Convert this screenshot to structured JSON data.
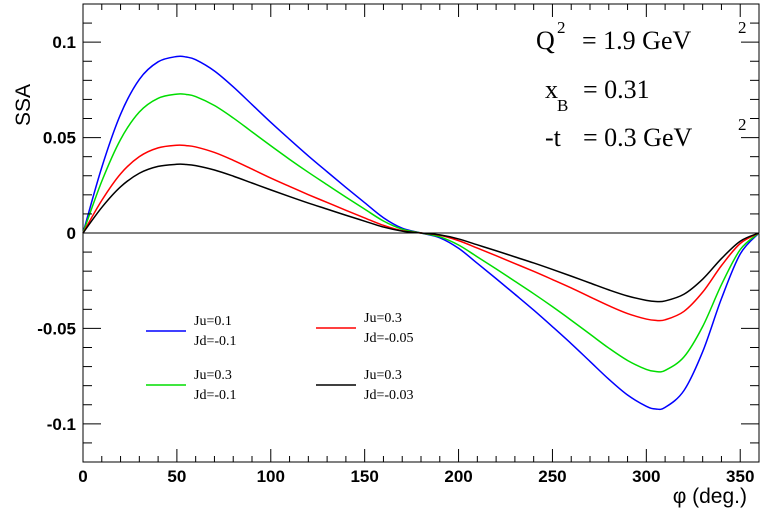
{
  "chart_data": {
    "type": "line",
    "title": "",
    "xlabel": "φ (deg.)",
    "ylabel": "SSA",
    "xlim": [
      0,
      360
    ],
    "ylim": [
      -0.12,
      0.12
    ],
    "x_ticks": [
      0,
      50,
      100,
      150,
      200,
      250,
      300,
      350
    ],
    "x_tick_labels": [
      "0",
      "50",
      "100",
      "150",
      "200",
      "250",
      "300",
      "350"
    ],
    "y_ticks": [
      -0.1,
      -0.05,
      0,
      0.05,
      0.1
    ],
    "y_tick_labels": [
      "-0.1",
      "-0.05",
      "0",
      "0.05",
      "0.1"
    ],
    "grid": false,
    "legend_position": "lower-left",
    "annotations": {
      "q2": {
        "label": "Q",
        "sup": "2",
        "value": "= 1.9 GeV",
        "unit_sup": "2"
      },
      "xb": {
        "label": "x",
        "sub": "B",
        "value": "= 0.31"
      },
      "t": {
        "label": "-t",
        "value": "= 0.3 GeV",
        "unit_sup": "2"
      }
    },
    "x": [
      0,
      10,
      20,
      30,
      40,
      50,
      55,
      60,
      70,
      80,
      90,
      100,
      110,
      120,
      130,
      140,
      150,
      160,
      170,
      180,
      190,
      200,
      210,
      220,
      230,
      240,
      250,
      260,
      270,
      280,
      290,
      300,
      305,
      310,
      320,
      330,
      340,
      350,
      360
    ],
    "series": [
      {
        "label_line1": "Ju=0.1",
        "label_line2": "Jd=-0.1",
        "color": "#0000ff",
        "values": [
          0,
          0.0344,
          0.0622,
          0.0805,
          0.0897,
          0.0925,
          0.0922,
          0.0908,
          0.0849,
          0.0766,
          0.0673,
          0.058,
          0.0491,
          0.0404,
          0.0321,
          0.0239,
          0.0159,
          0.008,
          0.0025,
          0,
          -0.0025,
          -0.008,
          -0.0159,
          -0.0239,
          -0.0321,
          -0.0404,
          -0.0491,
          -0.058,
          -0.0673,
          -0.0766,
          -0.0849,
          -0.0908,
          -0.0922,
          -0.0914,
          -0.0826,
          -0.0622,
          -0.0344,
          -0.011,
          0
        ]
      },
      {
        "label_line1": "Ju=0.3",
        "label_line2": "Jd=-0.1",
        "color": "#00dd00",
        "values": [
          0,
          0.0271,
          0.049,
          0.0634,
          0.0706,
          0.0728,
          0.0726,
          0.0715,
          0.0668,
          0.0603,
          0.053,
          0.0457,
          0.0386,
          0.0318,
          0.0253,
          0.0188,
          0.0125,
          0.0063,
          0.002,
          0,
          -0.002,
          -0.0063,
          -0.0125,
          -0.0188,
          -0.0253,
          -0.0318,
          -0.0386,
          -0.0457,
          -0.053,
          -0.0603,
          -0.0668,
          -0.0715,
          -0.0726,
          -0.072,
          -0.065,
          -0.049,
          -0.0271,
          -0.0087,
          0
        ]
      },
      {
        "label_line1": "Ju=0.3",
        "label_line2": "Jd=-0.05",
        "color": "#ff0000",
        "values": [
          0,
          0.0171,
          0.031,
          0.04,
          0.0446,
          0.046,
          0.0458,
          0.0451,
          0.0422,
          0.0381,
          0.0335,
          0.0288,
          0.0244,
          0.0201,
          0.016,
          0.0119,
          0.0079,
          0.004,
          0.0012,
          0,
          -0.0012,
          -0.004,
          -0.0079,
          -0.0119,
          -0.016,
          -0.0201,
          -0.0244,
          -0.0288,
          -0.0335,
          -0.0381,
          -0.0422,
          -0.0451,
          -0.0458,
          -0.0455,
          -0.0411,
          -0.031,
          -0.0171,
          -0.0055,
          0
        ]
      },
      {
        "label_line1": "Ju=0.3",
        "label_line2": "Jd=-0.03",
        "color": "#000000",
        "values": [
          0,
          0.0134,
          0.0242,
          0.0313,
          0.0349,
          0.036,
          0.0359,
          0.0353,
          0.033,
          0.0298,
          0.0262,
          0.0226,
          0.0191,
          0.0157,
          0.0125,
          0.0093,
          0.0062,
          0.0031,
          0.001,
          0,
          -0.001,
          -0.0031,
          -0.0062,
          -0.0093,
          -0.0125,
          -0.0157,
          -0.0191,
          -0.0226,
          -0.0262,
          -0.0298,
          -0.033,
          -0.0353,
          -0.0359,
          -0.0356,
          -0.0321,
          -0.0242,
          -0.0134,
          -0.0043,
          0
        ]
      }
    ]
  }
}
